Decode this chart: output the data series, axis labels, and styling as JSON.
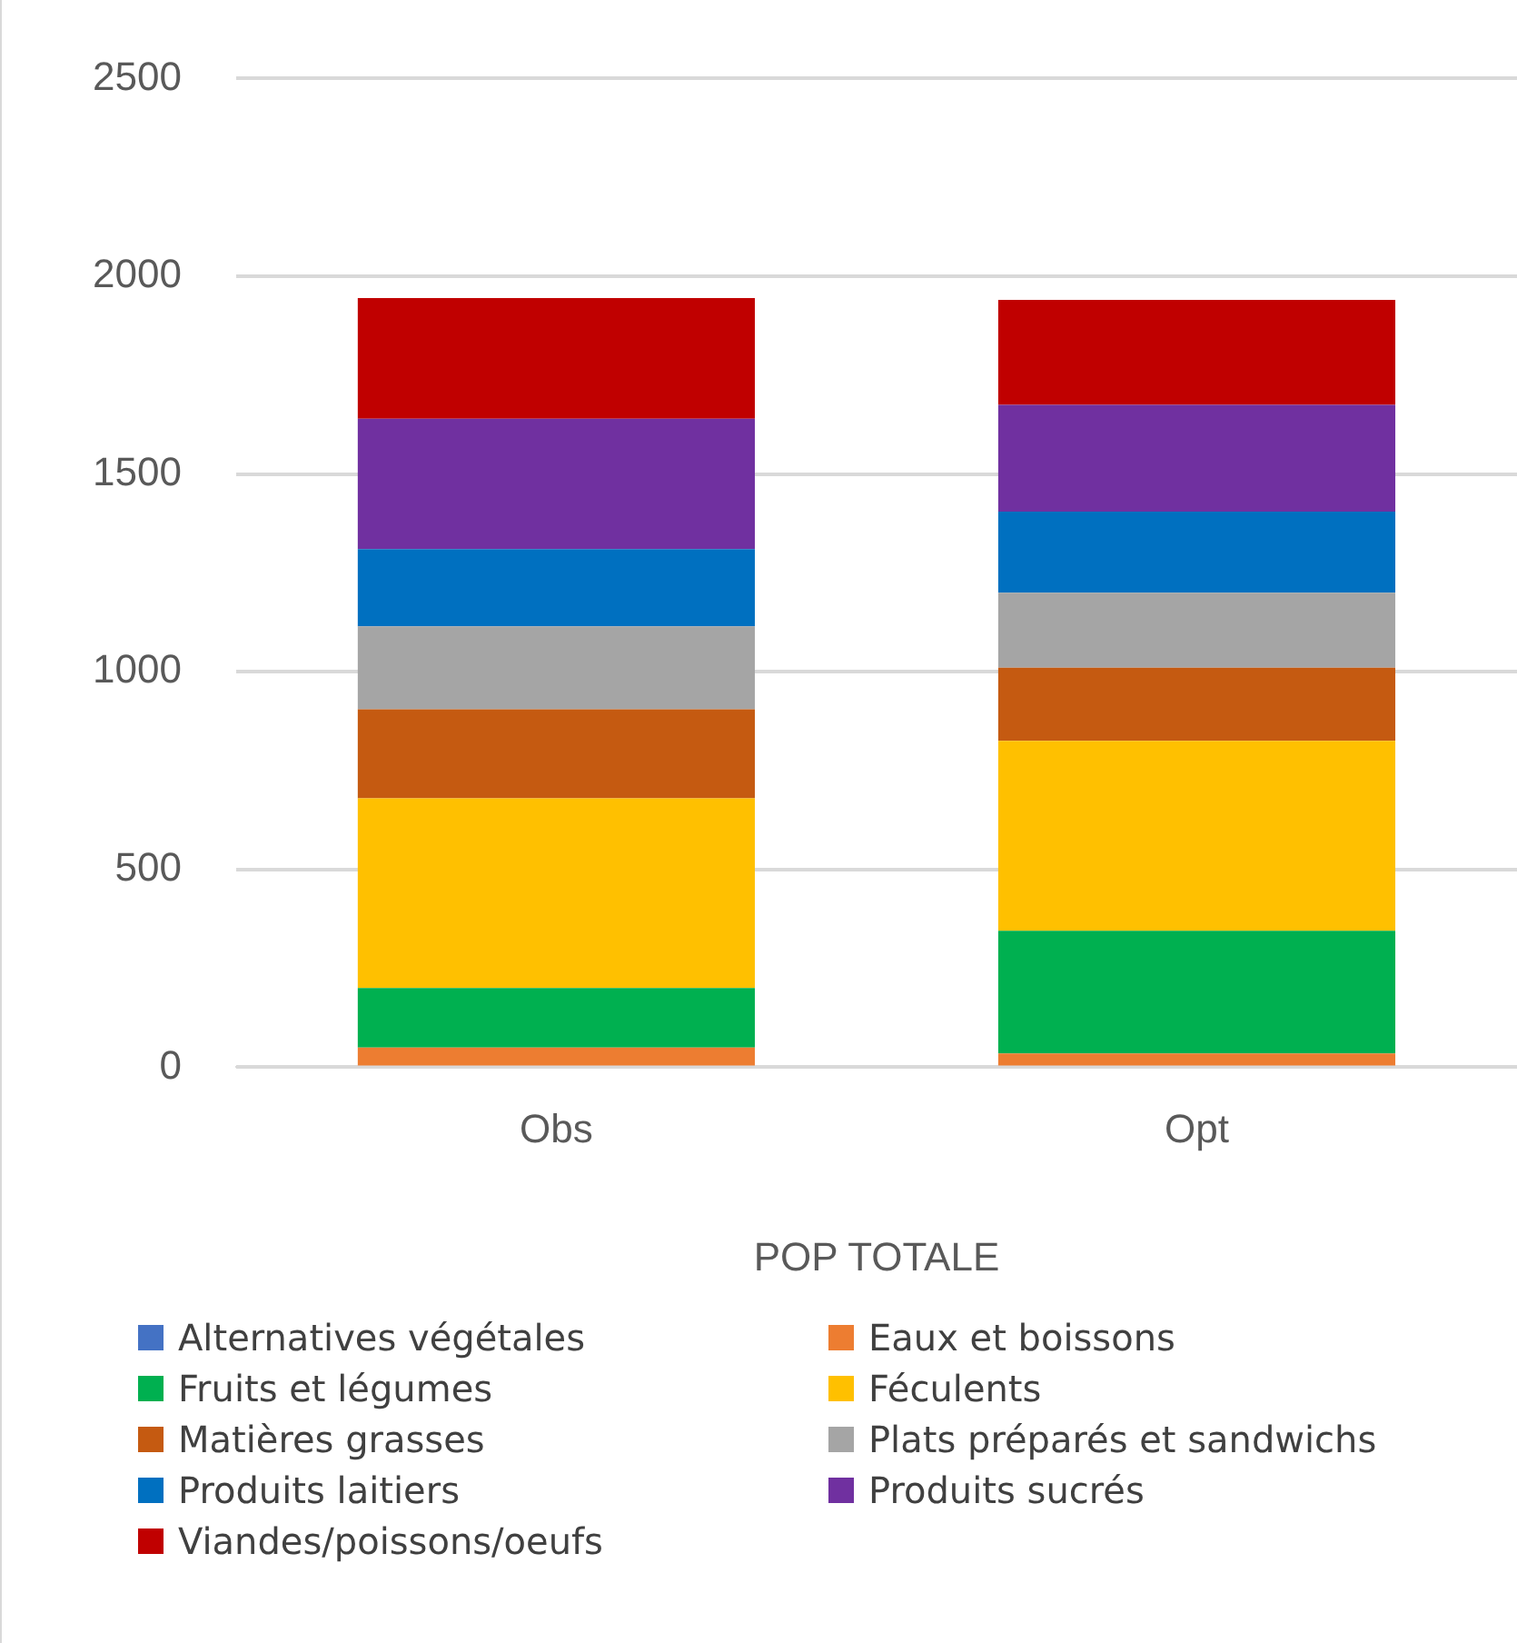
{
  "chart_data": {
    "type": "bar",
    "stacked": true,
    "xlabel": "POP TOTALE",
    "categories": [
      "Obs",
      "Opt"
    ],
    "series": [
      {
        "name": "Alternatives végétales",
        "color": "#4472c4",
        "values": [
          0,
          0
        ]
      },
      {
        "name": "Eaux et boissons",
        "color": "#ed7d31",
        "values": [
          50,
          35
        ]
      },
      {
        "name": "Fruits et légumes",
        "color": "#00b050",
        "values": [
          150,
          310
        ]
      },
      {
        "name": "Féculents",
        "color": "#ffc000",
        "values": [
          480,
          480
        ]
      },
      {
        "name": "Matières grasses",
        "color": "#c55a11",
        "values": [
          225,
          185
        ]
      },
      {
        "name": "Plats préparés et sandwichs",
        "color": "#a5a5a5",
        "values": [
          210,
          190
        ]
      },
      {
        "name": "Produits laitiers",
        "color": "#0070c0",
        "values": [
          195,
          205
        ]
      },
      {
        "name": "Produits sucrés",
        "color": "#7030a0",
        "values": [
          330,
          270
        ]
      },
      {
        "name": "Viandes/poissons/oeufs",
        "color": "#c00000",
        "values": [
          305,
          265
        ]
      }
    ],
    "ylim": [
      0,
      2500
    ],
    "yticks": [
      0,
      500,
      1000,
      1500,
      2000,
      2500
    ],
    "grid": "y",
    "legend": "bottom"
  }
}
